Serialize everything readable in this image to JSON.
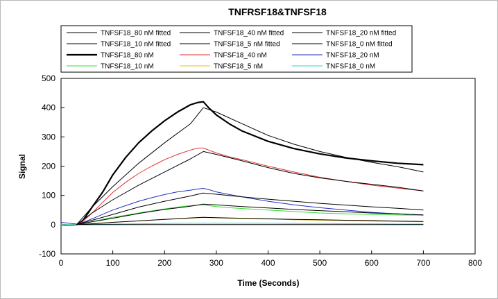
{
  "chart_data": {
    "type": "line",
    "title": "TNFRSF18&TNFSF18",
    "xlabel": "Time (Seconds)",
    "ylabel": "Signal",
    "xlim": [
      0,
      800
    ],
    "ylim": [
      -100,
      500
    ],
    "xticks": [
      0,
      100,
      200,
      300,
      400,
      500,
      600,
      700,
      800
    ],
    "yticks": [
      -100,
      0,
      100,
      200,
      300,
      400,
      500
    ],
    "grid": false,
    "legend_position": "top",
    "series": [
      {
        "name": "TNFSF18_80 nM fitted",
        "color": "#000000",
        "kind": "fitted",
        "x": [
          30,
          60,
          100,
          150,
          200,
          250,
          275,
          300,
          350,
          400,
          450,
          500,
          550,
          600,
          650,
          700
        ],
        "y": [
          0,
          60,
          130,
          210,
          280,
          345,
          400,
          385,
          345,
          305,
          275,
          250,
          230,
          213,
          198,
          180
        ]
      },
      {
        "name": "TNFSF18_40 nM fitted",
        "color": "#000000",
        "kind": "fitted",
        "x": [
          30,
          60,
          100,
          150,
          200,
          250,
          275,
          300,
          350,
          400,
          450,
          500,
          550,
          600,
          650,
          700
        ],
        "y": [
          0,
          40,
          85,
          135,
          180,
          225,
          250,
          240,
          218,
          195,
          175,
          160,
          148,
          138,
          128,
          115
        ]
      },
      {
        "name": "TNFSF18_20 nM fitted",
        "color": "#000000",
        "kind": "fitted",
        "x": [
          30,
          60,
          100,
          150,
          200,
          250,
          275,
          300,
          350,
          400,
          450,
          500,
          550,
          600,
          650,
          700
        ],
        "y": [
          0,
          15,
          35,
          60,
          80,
          98,
          108,
          104,
          95,
          87,
          80,
          73,
          67,
          61,
          56,
          50
        ]
      },
      {
        "name": "TNFSF18_10 nM fitted",
        "color": "#000000",
        "kind": "fitted",
        "x": [
          30,
          60,
          100,
          150,
          200,
          250,
          275,
          300,
          350,
          400,
          450,
          500,
          550,
          600,
          650,
          700
        ],
        "y": [
          0,
          10,
          22,
          38,
          52,
          63,
          70,
          68,
          62,
          57,
          52,
          48,
          44,
          40,
          37,
          33
        ]
      },
      {
        "name": "TNFSF18_5 nM fitted",
        "color": "#000000",
        "kind": "fitted",
        "x": [
          30,
          60,
          100,
          150,
          200,
          250,
          275,
          300,
          350,
          400,
          450,
          500,
          550,
          600,
          650,
          700
        ],
        "y": [
          0,
          3,
          8,
          13,
          18,
          23,
          25,
          24,
          22,
          20,
          18,
          17,
          15,
          14,
          12,
          11
        ]
      },
      {
        "name": "TNFSF18_0 nM fitted",
        "color": "#000000",
        "kind": "fitted",
        "x": [
          30,
          100,
          200,
          275,
          400,
          550,
          700
        ],
        "y": [
          0,
          0,
          0,
          0,
          0,
          0,
          0
        ]
      },
      {
        "name": "TNFSF18_80 nM",
        "color": "#000000",
        "kind": "data",
        "width": 2.2,
        "x": [
          0,
          15,
          30,
          40,
          60,
          80,
          100,
          125,
          150,
          175,
          200,
          225,
          250,
          265,
          275,
          285,
          300,
          325,
          350,
          400,
          450,
          500,
          550,
          600,
          650,
          700
        ],
        "y": [
          0,
          -2,
          0,
          8,
          60,
          110,
          170,
          230,
          280,
          320,
          355,
          385,
          410,
          418,
          420,
          400,
          375,
          345,
          320,
          285,
          260,
          242,
          228,
          218,
          210,
          205
        ]
      },
      {
        "name": "TNFSF18_40 nM",
        "color": "#e03030",
        "kind": "data",
        "width": 1,
        "x": [
          0,
          15,
          30,
          40,
          60,
          80,
          100,
          125,
          150,
          175,
          200,
          225,
          250,
          265,
          275,
          285,
          300,
          325,
          350,
          400,
          450,
          500,
          550,
          600,
          650,
          700
        ],
        "y": [
          2,
          -3,
          0,
          8,
          40,
          75,
          110,
          145,
          175,
          200,
          222,
          240,
          255,
          262,
          262,
          255,
          245,
          232,
          222,
          200,
          180,
          162,
          148,
          135,
          125,
          115
        ]
      },
      {
        "name": "TNFSF18_20 nM",
        "color": "#1f2fbf",
        "kind": "data",
        "width": 1,
        "x": [
          0,
          15,
          30,
          40,
          60,
          80,
          100,
          125,
          150,
          175,
          200,
          225,
          250,
          265,
          275,
          285,
          300,
          325,
          350,
          400,
          450,
          500,
          550,
          600,
          650,
          700
        ],
        "y": [
          8,
          5,
          2,
          6,
          20,
          35,
          50,
          65,
          80,
          92,
          103,
          112,
          118,
          122,
          124,
          120,
          112,
          103,
          95,
          80,
          68,
          58,
          50,
          42,
          37,
          33
        ]
      },
      {
        "name": "TNFSF18_10 nM",
        "color": "#33dd33",
        "kind": "data",
        "width": 1,
        "x": [
          0,
          15,
          30,
          40,
          60,
          80,
          100,
          125,
          150,
          175,
          200,
          225,
          250,
          265,
          275,
          285,
          300,
          325,
          350,
          400,
          450,
          500,
          550,
          600,
          650,
          700
        ],
        "y": [
          2,
          -2,
          0,
          3,
          10,
          18,
          25,
          32,
          40,
          47,
          54,
          60,
          65,
          67,
          68,
          65,
          62,
          58,
          55,
          50,
          45,
          40,
          37,
          35,
          33,
          32
        ]
      },
      {
        "name": "TNFSF18_5 nM",
        "color": "#e8b820",
        "kind": "data",
        "width": 1,
        "x": [
          0,
          30,
          60,
          100,
          150,
          200,
          250,
          275,
          300,
          350,
          400,
          450,
          500,
          550,
          600,
          650,
          700
        ],
        "y": [
          0,
          0,
          4,
          8,
          13,
          18,
          22,
          25,
          23,
          21,
          19,
          17,
          15,
          14,
          12,
          11,
          10
        ]
      },
      {
        "name": "TNFSF18_0 nM",
        "color": "#33cccc",
        "kind": "data",
        "width": 1,
        "x": [
          0,
          30,
          60,
          100,
          150,
          200,
          250,
          275,
          300,
          350,
          400,
          450,
          500,
          550,
          600,
          650,
          700
        ],
        "y": [
          0,
          0,
          1,
          2,
          3,
          4,
          5,
          5,
          5,
          5,
          5,
          4,
          4,
          3,
          3,
          2,
          2
        ]
      }
    ]
  }
}
